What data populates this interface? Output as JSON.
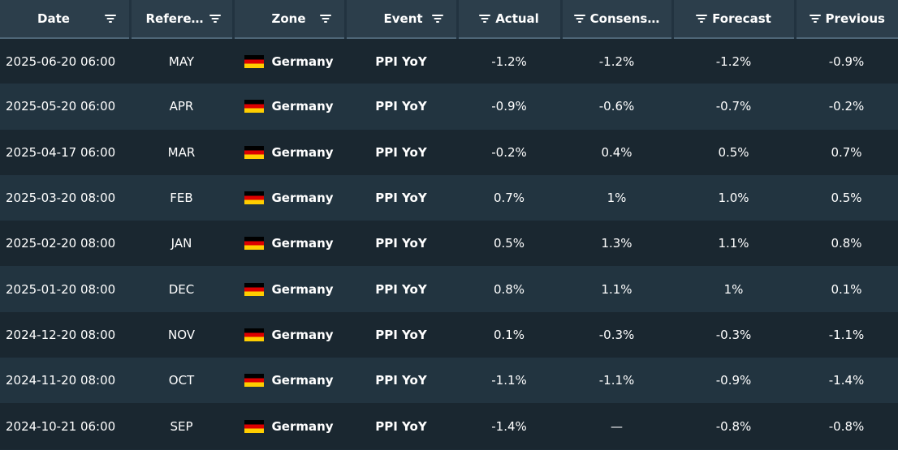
{
  "columns": {
    "date": "Date",
    "reference": "Refere…",
    "zone": "Zone",
    "event": "Event",
    "actual": "Actual",
    "consensus": "Consens…",
    "forecast": "Forecast",
    "previous": "Previous"
  },
  "colors": {
    "header_bg": "#2c3e4b",
    "row_odd": "#1a2730",
    "row_even": "#223440",
    "flag": [
      "#000000",
      "#dd0000",
      "#ffce00"
    ]
  },
  "icons": {
    "filter": "filter-icon",
    "flag": "germany-flag-icon"
  },
  "rows": [
    {
      "date": "2025-06-20 06:00",
      "reference": "MAY",
      "zone": "Germany",
      "event": "PPI YoY",
      "actual": "-1.2%",
      "consensus": "-1.2%",
      "forecast": "-1.2%",
      "previous": "-0.9%"
    },
    {
      "date": "2025-05-20 06:00",
      "reference": "APR",
      "zone": "Germany",
      "event": "PPI YoY",
      "actual": "-0.9%",
      "consensus": "-0.6%",
      "forecast": "-0.7%",
      "previous": "-0.2%"
    },
    {
      "date": "2025-04-17 06:00",
      "reference": "MAR",
      "zone": "Germany",
      "event": "PPI YoY",
      "actual": "-0.2%",
      "consensus": "0.4%",
      "forecast": "0.5%",
      "previous": "0.7%"
    },
    {
      "date": "2025-03-20 08:00",
      "reference": "FEB",
      "zone": "Germany",
      "event": "PPI YoY",
      "actual": "0.7%",
      "consensus": "1%",
      "forecast": "1.0%",
      "previous": "0.5%"
    },
    {
      "date": "2025-02-20 08:00",
      "reference": "JAN",
      "zone": "Germany",
      "event": "PPI YoY",
      "actual": "0.5%",
      "consensus": "1.3%",
      "forecast": "1.1%",
      "previous": "0.8%"
    },
    {
      "date": "2025-01-20 08:00",
      "reference": "DEC",
      "zone": "Germany",
      "event": "PPI YoY",
      "actual": "0.8%",
      "consensus": "1.1%",
      "forecast": "1%",
      "previous": "0.1%"
    },
    {
      "date": "2024-12-20 08:00",
      "reference": "NOV",
      "zone": "Germany",
      "event": "PPI YoY",
      "actual": "0.1%",
      "consensus": "-0.3%",
      "forecast": "-0.3%",
      "previous": "-1.1%"
    },
    {
      "date": "2024-11-20 08:00",
      "reference": "OCT",
      "zone": "Germany",
      "event": "PPI YoY",
      "actual": "-1.1%",
      "consensus": "-1.1%",
      "forecast": "-0.9%",
      "previous": "-1.4%"
    },
    {
      "date": "2024-10-21 06:00",
      "reference": "SEP",
      "zone": "Germany",
      "event": "PPI YoY",
      "actual": "-1.4%",
      "consensus": "—",
      "forecast": "-0.8%",
      "previous": "-0.8%"
    }
  ]
}
